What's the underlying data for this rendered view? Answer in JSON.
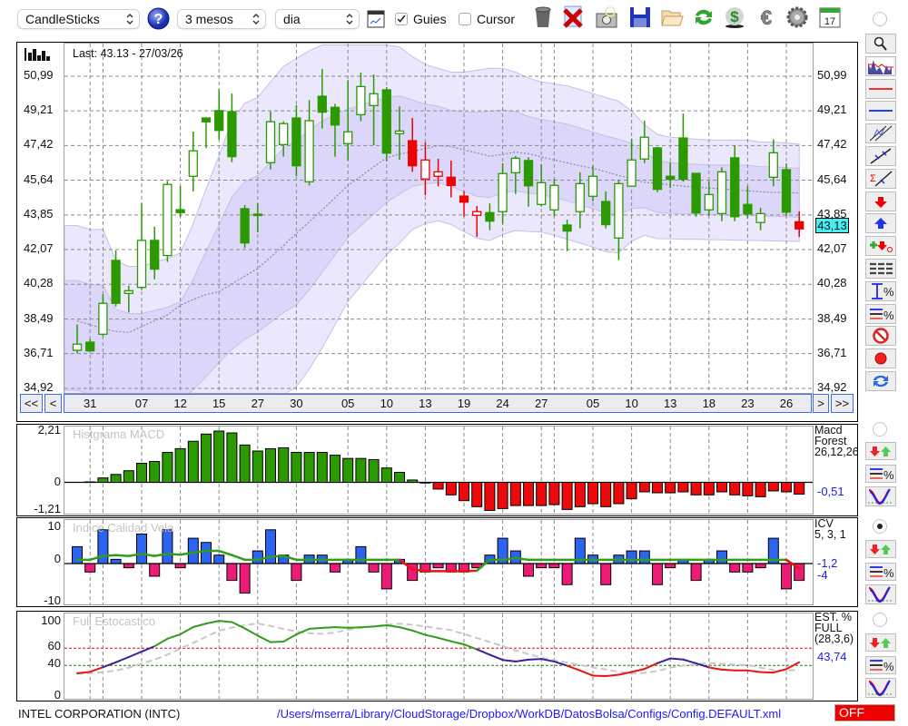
{
  "toolbar": {
    "chart_type": "CandleSticks",
    "period": "3 mesos",
    "interval": "dia",
    "guides_label": "Guies",
    "guides_checked": true,
    "cursor_label": "Cursor",
    "cursor_checked": false,
    "icons": [
      "help-icon",
      "chart-window-icon",
      "trash-icon",
      "delete-icon",
      "camera-icon",
      "save-icon",
      "folder-open-icon",
      "refresh-icon",
      "dollar-cycle-icon",
      "euro-icon",
      "gear-icon",
      "calendar-icon"
    ],
    "calendar_day": "17"
  },
  "main": {
    "last_label": "Last: 43.13 - 27/03/26",
    "price_tag": "43,13",
    "nav": {
      "first": "<<",
      "prev": "<",
      "next": ">",
      "last": ">>"
    }
  },
  "side_buttons": [
    "zoom-icon",
    "chart-overview-icon",
    "red-line-icon",
    "blue-line-icon",
    "channel-icon",
    "trendline-icon",
    "sigma-trendline-icon",
    "sell-arrow-icon",
    "buy-arrow-icon",
    "buy-sell-icon",
    "dashes-icon",
    "range-percent-icon",
    "lines-percent-icon",
    "no-entry-icon",
    "record-icon",
    "sync-icon"
  ],
  "panels": {
    "macd": {
      "title": "Histgrama MACD",
      "name_lines": [
        "Macd",
        "Forest",
        "26,12,26"
      ],
      "values": [
        "-0,51"
      ],
      "selected": false
    },
    "icv": {
      "title": "Indice Calidad Vela",
      "name_lines": [
        "ICV",
        "5, 3, 1"
      ],
      "values": [
        "-1,2",
        "-4"
      ],
      "selected": true
    },
    "stoch": {
      "title": "Full Estocastico",
      "name_lines": [
        "EST. %",
        "FULL",
        "(28,3,6)"
      ],
      "values": [
        "43,74"
      ],
      "selected": false
    }
  },
  "footer": {
    "company": "INTEL CORPORATION (INTC)",
    "config_path": "/Users/mserra/Library/CloudStorage/Dropbox/WorkDB/DatosBolsa/Configs/Config.DEFAULT.xml",
    "status": "OFF"
  },
  "colors": {
    "up_green": "#2a9a00",
    "signal_red": "#ee0000",
    "icv_pos": "#2a64f0",
    "icv_neg": "#ee1a78",
    "band_outer": "#ebe7fd",
    "band_inner": "#ddd6fb",
    "value_blue": "#1a1aff",
    "price_tag": "#44f0f4"
  },
  "chart_data": [
    {
      "type": "candlestick",
      "y_ticks": [
        "50,99",
        "49,21",
        "47,42",
        "45,64",
        "43,85",
        "42,07",
        "40,28",
        "38,49",
        "36,71",
        "34,92"
      ],
      "ylim": [
        34.92,
        50.99
      ],
      "x_ticks": [
        {
          "label": "31",
          "index": 1
        },
        {
          "label": "07",
          "index": 5
        },
        {
          "label": "12",
          "index": 8
        },
        {
          "label": "15",
          "index": 11
        },
        {
          "label": "27",
          "index": 14
        },
        {
          "label": "30",
          "index": 17
        },
        {
          "label": "05",
          "index": 21
        },
        {
          "label": "10",
          "index": 24
        },
        {
          "label": "13",
          "index": 27
        },
        {
          "label": "19",
          "index": 30
        },
        {
          "label": "24",
          "index": 33
        },
        {
          "label": "27",
          "index": 36
        },
        {
          "label": "05",
          "index": 40
        },
        {
          "label": "10",
          "index": 43
        },
        {
          "label": "13",
          "index": 46
        },
        {
          "label": "18",
          "index": 49
        },
        {
          "label": "23",
          "index": 52
        },
        {
          "label": "26",
          "index": 55
        }
      ],
      "ohlc": [
        [
          36.88,
          38.21,
          36.73,
          37.2
        ],
        [
          37.3,
          37.46,
          36.78,
          36.85
        ],
        [
          37.71,
          39.77,
          37.62,
          39.3
        ],
        [
          41.51,
          42.02,
          39.14,
          39.3
        ],
        [
          39.81,
          40.2,
          38.83,
          39.95
        ],
        [
          40.12,
          44.44,
          39.99,
          42.54
        ],
        [
          42.54,
          43.24,
          40.54,
          41.06
        ],
        [
          41.76,
          45.6,
          41.43,
          45.42
        ],
        [
          44.12,
          45.34,
          43.74,
          43.97
        ],
        [
          45.84,
          48.14,
          45.06,
          47.15
        ],
        [
          48.84,
          48.87,
          47.29,
          48.64
        ],
        [
          49.22,
          50.32,
          47.73,
          48.2
        ],
        [
          49.17,
          50.1,
          46.57,
          46.85
        ],
        [
          44.17,
          44.36,
          42.15,
          42.41
        ],
        [
          43.89,
          44.44,
          42.96,
          43.89
        ],
        [
          46.54,
          49.18,
          46.19,
          48.65
        ],
        [
          47.47,
          48.67,
          46.85,
          48.55
        ],
        [
          48.84,
          49.5,
          45.84,
          46.38
        ],
        [
          45.56,
          49.76,
          45.37,
          48.7
        ],
        [
          49.96,
          51.36,
          48.3,
          49.14
        ],
        [
          49.39,
          49.57,
          46.85,
          48.48
        ],
        [
          47.52,
          50.79,
          46.66,
          48.13
        ],
        [
          49.01,
          51.18,
          48.67,
          50.46
        ],
        [
          49.48,
          51.08,
          47.44,
          50.09
        ],
        [
          50.29,
          50.43,
          46.61,
          47.03
        ],
        [
          48.03,
          49.45,
          46.69,
          48.17
        ],
        [
          47.67,
          48.84,
          46.07,
          46.38
        ],
        [
          45.7,
          47.58,
          44.86,
          46.68
        ],
        [
          45.84,
          46.74,
          45.32,
          46.07
        ],
        [
          45.79,
          46.65,
          44.75,
          45.37
        ],
        [
          44.82,
          45.06,
          43.76,
          44.51
        ],
        [
          43.83,
          44.31,
          42.72,
          44.02
        ],
        [
          43.97,
          44.44,
          43.06,
          43.53
        ],
        [
          44.02,
          46.51,
          43.39,
          45.98
        ],
        [
          46.02,
          46.88,
          44.93,
          46.77
        ],
        [
          46.65,
          46.82,
          44.28,
          45.35
        ],
        [
          44.39,
          46.46,
          44.28,
          45.51
        ],
        [
          44.11,
          45.71,
          43.78,
          45.37
        ],
        [
          43.33,
          43.61,
          41.99,
          43.02
        ],
        [
          44.02,
          46.04,
          43.16,
          45.46
        ],
        [
          44.81,
          46.38,
          44.56,
          45.84
        ],
        [
          44.54,
          45.06,
          43.16,
          43.35
        ],
        [
          42.66,
          45.65,
          41.52,
          45.46
        ],
        [
          45.33,
          47.78,
          45.33,
          46.68
        ],
        [
          46.73,
          48.7,
          46.52,
          47.85
        ],
        [
          47.3,
          47.35,
          45.03,
          45.17
        ],
        [
          45.84,
          46.57,
          45.24,
          45.68
        ],
        [
          47.81,
          49.07,
          45.56,
          45.68
        ],
        [
          45.99,
          45.99,
          43.76,
          43.95
        ],
        [
          44.11,
          45.6,
          43.81,
          44.9
        ],
        [
          43.92,
          46.3,
          43.53,
          46.07
        ],
        [
          46.79,
          47.43,
          43.53,
          43.76
        ],
        [
          44.39,
          45.33,
          43.66,
          43.9
        ],
        [
          43.46,
          44.22,
          43.06,
          43.92
        ],
        [
          45.79,
          47.74,
          45.33,
          47.05
        ],
        [
          46.18,
          46.51,
          43.81,
          43.99
        ],
        [
          43.5,
          44.03,
          42.72,
          43.13
        ]
      ],
      "candle_colors": [
        "green",
        "green",
        "green",
        "green",
        "green",
        "green",
        "green",
        "green",
        "green",
        "green",
        "green",
        "green",
        "green",
        "green",
        "green",
        "green",
        "green",
        "green",
        "green",
        "green",
        "green",
        "green",
        "green",
        "green",
        "green",
        "green",
        "red",
        "red",
        "red",
        "red",
        "red",
        "red",
        "green",
        "green",
        "green",
        "green",
        "green",
        "green",
        "green",
        "green",
        "green",
        "green",
        "green",
        "green",
        "green",
        "green",
        "green",
        "green",
        "green",
        "green",
        "green",
        "green",
        "green",
        "green",
        "green",
        "green",
        "red"
      ],
      "band_upper": [
        43.3,
        43.1,
        43.1,
        41.5,
        41.2,
        41.2,
        41.4,
        41.6,
        41.9,
        43.4,
        45.2,
        46.9,
        48.7,
        49.6,
        49.9,
        50.7,
        51.5,
        51.9,
        52.3,
        52.6,
        52.6,
        52.6,
        52.6,
        52.6,
        52.6,
        52.5,
        52.0,
        51.6,
        51.4,
        51.2,
        51.2,
        51.3,
        51.4,
        51.4,
        51.2,
        50.9,
        50.7,
        50.6,
        50.5,
        50.3,
        50.1,
        49.9,
        49.7,
        49.2,
        48.5,
        48.0,
        47.85,
        47.8,
        47.75,
        47.7,
        47.7,
        47.7,
        47.7,
        47.6,
        47.6,
        47.55,
        47.5
      ],
      "band_lower": [
        32.0,
        31.8,
        31.6,
        31.5,
        31.5,
        31.5,
        31.5,
        31.6,
        31.8,
        32.0,
        32.3,
        32.7,
        33.0,
        33.4,
        33.8,
        34.2,
        34.6,
        35.0,
        35.9,
        37.0,
        38.2,
        39.4,
        40.2,
        41.0,
        41.8,
        42.4,
        43.1,
        43.4,
        43.55,
        43.35,
        43.0,
        42.65,
        42.53,
        42.85,
        43.05,
        43.0,
        42.97,
        42.8,
        42.6,
        42.4,
        42.2,
        41.95,
        41.9,
        42.5,
        42.8,
        42.63,
        42.62,
        42.6,
        42.6,
        42.58,
        42.57,
        42.55,
        42.54,
        42.53,
        42.51,
        42.5,
        42.48
      ],
      "moving_average": [
        38.4,
        38.2,
        38.0,
        37.85,
        37.8,
        38.1,
        38.4,
        38.7,
        39.2,
        39.5,
        39.75,
        39.9,
        40.3,
        40.7,
        41.1,
        41.67,
        42.28,
        42.89,
        43.5,
        44.1,
        44.74,
        45.36,
        45.84,
        46.33,
        46.79,
        46.98,
        47.12,
        47.27,
        47.42,
        47.37,
        47.2,
        47.04,
        46.88,
        46.96,
        47.09,
        47.0,
        46.84,
        46.68,
        46.53,
        46.38,
        46.25,
        46.07,
        45.88,
        45.71,
        45.53,
        45.47,
        45.4,
        45.33,
        45.28,
        45.24,
        45.19,
        45.14,
        45.09,
        45.04,
        45.01,
        45.0,
        44.98
      ],
      "last": 43.13
    },
    {
      "type": "bar",
      "title": "Histgrama MACD",
      "y_ticks": [
        "2,21",
        "0",
        "-1,21"
      ],
      "ylim": [
        -1.21,
        2.21
      ],
      "values": [
        0,
        0.02,
        0.19,
        0.34,
        0.5,
        0.82,
        0.9,
        1.29,
        1.45,
        1.77,
        2.08,
        2.21,
        2.13,
        1.61,
        1.35,
        1.45,
        1.49,
        1.29,
        1.29,
        1.29,
        1.17,
        1.03,
        1.03,
        0.98,
        0.62,
        0.43,
        0.1,
        -0.03,
        -0.29,
        -0.54,
        -0.79,
        -1.05,
        -1.21,
        -1.13,
        -1.0,
        -1.0,
        -1.0,
        -0.96,
        -1.17,
        -1.05,
        -0.92,
        -1.05,
        -0.92,
        -0.71,
        -0.41,
        -0.45,
        -0.45,
        -0.41,
        -0.54,
        -0.54,
        -0.41,
        -0.54,
        -0.58,
        -0.62,
        -0.37,
        -0.41,
        -0.51
      ]
    },
    {
      "type": "bar",
      "title": "Indice Calidad Vela",
      "y_ticks": [
        "10",
        "0",
        "-10"
      ],
      "ylim": [
        -10,
        10
      ],
      "values": [
        4,
        -2,
        8,
        1,
        -1,
        7,
        -3,
        8,
        -1,
        6,
        5,
        2,
        -4,
        -7,
        3,
        8,
        2,
        -4,
        2,
        2,
        -2,
        1,
        4,
        -2,
        -6,
        1,
        -4,
        -2,
        -1,
        -2,
        -2,
        -1,
        2,
        6,
        3,
        -3,
        -1,
        -1,
        -5,
        6,
        2,
        -5,
        2,
        3,
        3,
        -5,
        -1,
        1,
        -4,
        1,
        3,
        -2,
        -2,
        -1,
        6,
        -6,
        -4
      ],
      "signal": [
        0.9,
        0.9,
        1.8,
        2.0,
        1.8,
        2.3,
        1.8,
        2.3,
        2.1,
        2.6,
        3.0,
        3.0,
        2.0,
        0.9,
        0.9,
        1.6,
        1.8,
        0.9,
        0.9,
        0.9,
        0.9,
        0.9,
        0.9,
        0.9,
        0.9,
        0.9,
        -1.4,
        -1.8,
        -1.8,
        -1.8,
        -1.8,
        -1.7,
        0.9,
        0.9,
        1.3,
        0.9,
        0.9,
        0.9,
        0.9,
        0.9,
        0.9,
        0.9,
        0.9,
        0.9,
        0.9,
        0.9,
        0.9,
        0.9,
        0.9,
        0.9,
        0.9,
        0.9,
        0.9,
        0.9,
        0.9,
        0.9,
        -1.2
      ]
    },
    {
      "type": "line",
      "title": "Full Estocastico",
      "y_ticks": [
        "100",
        "60",
        "40",
        "0"
      ],
      "ylim": [
        0,
        100
      ],
      "levels": [
        60,
        40
      ],
      "k": [
        31.0,
        32.6,
        38.0,
        43.7,
        49.8,
        56,
        62.3,
        71,
        76.2,
        84.5,
        88.6,
        91.8,
        90.3,
        83,
        74.6,
        67,
        67.7,
        76,
        82.5,
        83.6,
        84.4,
        83.7,
        84.3,
        85.2,
        86.6,
        84.4,
        80.5,
        75.5,
        72,
        68,
        64.5,
        58.7,
        52.5,
        46.4,
        44.6,
        46.8,
        47.5,
        44.6,
        39.7,
        34.2,
        28.2,
        27.7,
        29.2,
        32.4,
        36,
        42.6,
        48.2,
        46.9,
        42.5,
        37.7,
        35.2,
        34.2,
        34.2,
        32.3,
        31.8,
        35.8,
        43.74
      ],
      "d": [
        30.3,
        31.0,
        32.3,
        34.1,
        37.4,
        42.2,
        46.8,
        52.6,
        59.5,
        66.3,
        73.2,
        80.3,
        84,
        86.7,
        88.6,
        86,
        82.4,
        79.5,
        77.3,
        76.7,
        78.3,
        81.4,
        84,
        85.5,
        87.2,
        88.5,
        87.1,
        85.4,
        82.9,
        81,
        76.5,
        71.8,
        67.2,
        62.5,
        57.3,
        53.3,
        49.2,
        46,
        43.3,
        40.6,
        37.7,
        35.3,
        32.7,
        30.5,
        31.4,
        33.6,
        37.4,
        39.8,
        41.4,
        42.8,
        41.8,
        41.0,
        40.5,
        37.5,
        34.5,
        34.3,
        34.8
      ]
    }
  ]
}
